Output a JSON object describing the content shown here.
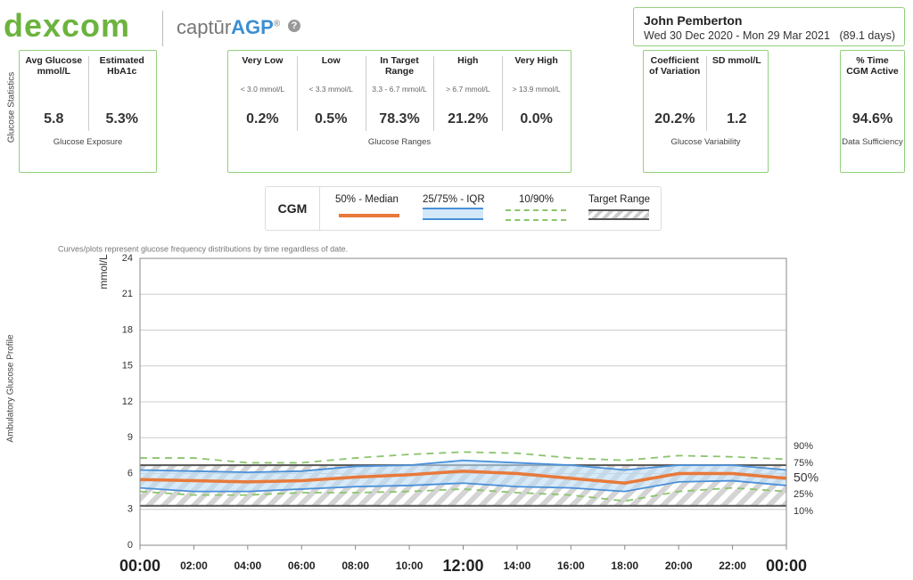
{
  "header": {
    "logo": "dexcom",
    "product_prefix": "captūr",
    "product_name": "AGP",
    "product_mark": "®",
    "help": "?",
    "patient": "John Pemberton",
    "dates": "Wed 30 Dec 2020 - Mon 29 Mar 2021",
    "days": "(89.1 days)"
  },
  "stats_label": "Glucose Statistics",
  "panels": [
    {
      "caption": "Glucose Exposure",
      "items": [
        {
          "label": "Avg Glucose mmol/L",
          "value": "5.8"
        },
        {
          "label": "Estimated HbA1c",
          "value": "5.3%"
        }
      ]
    },
    {
      "caption": "Glucose Ranges",
      "items": [
        {
          "label": "Very Low",
          "sub": "< 3.0 mmol/L",
          "value": "0.2%"
        },
        {
          "label": "Low",
          "sub": "< 3.3 mmol/L",
          "value": "0.5%"
        },
        {
          "label": "In Target Range",
          "sub": "3.3 - 6.7 mmol/L",
          "value": "78.3%"
        },
        {
          "label": "High",
          "sub": "> 6.7 mmol/L",
          "value": "21.2%"
        },
        {
          "label": "Very High",
          "sub": "> 13.9 mmol/L",
          "value": "0.0%"
        }
      ]
    },
    {
      "caption": "Glucose Variability",
      "items": [
        {
          "label": "Coefficient of Variation",
          "value": "20.2%"
        },
        {
          "label": "SD mmol/L",
          "value": "1.2"
        }
      ]
    },
    {
      "caption": "Data Sufficiency",
      "items": [
        {
          "label": "% Time CGM Active",
          "value": "94.6%"
        }
      ]
    }
  ],
  "legend": {
    "title": "CGM",
    "items": [
      "50% - Median",
      "25/75% - IQR",
      "10/90%",
      "Target Range"
    ]
  },
  "chart_data": {
    "type": "agp",
    "note": "Curves/plots represent glucose frequency distributions by time regardless of date.",
    "section_label": "Ambulatory Glucose Profile",
    "ylabel": "mmol/L",
    "x": [
      0,
      2,
      4,
      6,
      8,
      10,
      12,
      14,
      16,
      18,
      20,
      22,
      24
    ],
    "xlim": [
      0,
      24
    ],
    "xticks": [
      {
        "value": 0,
        "label": "00:00"
      },
      {
        "value": 2,
        "label": "02:00"
      },
      {
        "value": 4,
        "label": "04:00"
      },
      {
        "value": 6,
        "label": "06:00"
      },
      {
        "value": 8,
        "label": "08:00"
      },
      {
        "value": 10,
        "label": "10:00"
      },
      {
        "value": 12,
        "label": "12:00"
      },
      {
        "value": 14,
        "label": "14:00"
      },
      {
        "value": 16,
        "label": "16:00"
      },
      {
        "value": 18,
        "label": "18:00"
      },
      {
        "value": 20,
        "label": "20:00"
      },
      {
        "value": 22,
        "label": "22:00"
      },
      {
        "value": 24,
        "label": "00:00"
      }
    ],
    "ylim": [
      0,
      24
    ],
    "yticks": [
      0,
      3,
      6,
      9,
      12,
      15,
      18,
      21,
      24
    ],
    "grid": true,
    "target_range": [
      3.3,
      6.7
    ],
    "iqr_color": "#bcdcf5",
    "series": [
      {
        "name": "90%",
        "color": "#8cc56e",
        "dashed": true,
        "values": [
          7.3,
          7.3,
          6.9,
          6.9,
          7.3,
          7.6,
          7.8,
          7.7,
          7.3,
          7.1,
          7.5,
          7.4,
          7.2
        ]
      },
      {
        "name": "75%",
        "color": "#4a90d9",
        "dashed": false,
        "values": [
          6.3,
          6.2,
          6.1,
          6.2,
          6.6,
          6.7,
          7.1,
          6.9,
          6.7,
          6.3,
          6.7,
          6.7,
          6.3
        ]
      },
      {
        "name": "50%",
        "color": "#e8793a",
        "dashed": false,
        "values": [
          5.5,
          5.4,
          5.3,
          5.4,
          5.7,
          5.9,
          6.2,
          6.0,
          5.6,
          5.2,
          6.0,
          6.0,
          5.6
        ]
      },
      {
        "name": "25%",
        "color": "#4a90d9",
        "dashed": false,
        "values": [
          4.8,
          4.5,
          4.5,
          4.7,
          4.9,
          5.0,
          5.2,
          4.9,
          4.8,
          4.5,
          5.3,
          5.4,
          5.0
        ]
      },
      {
        "name": "10%",
        "color": "#8cc56e",
        "dashed": true,
        "values": [
          4.5,
          4.2,
          4.2,
          4.4,
          4.4,
          4.5,
          4.7,
          4.4,
          4.2,
          3.7,
          4.5,
          4.8,
          4.5
        ]
      }
    ]
  }
}
